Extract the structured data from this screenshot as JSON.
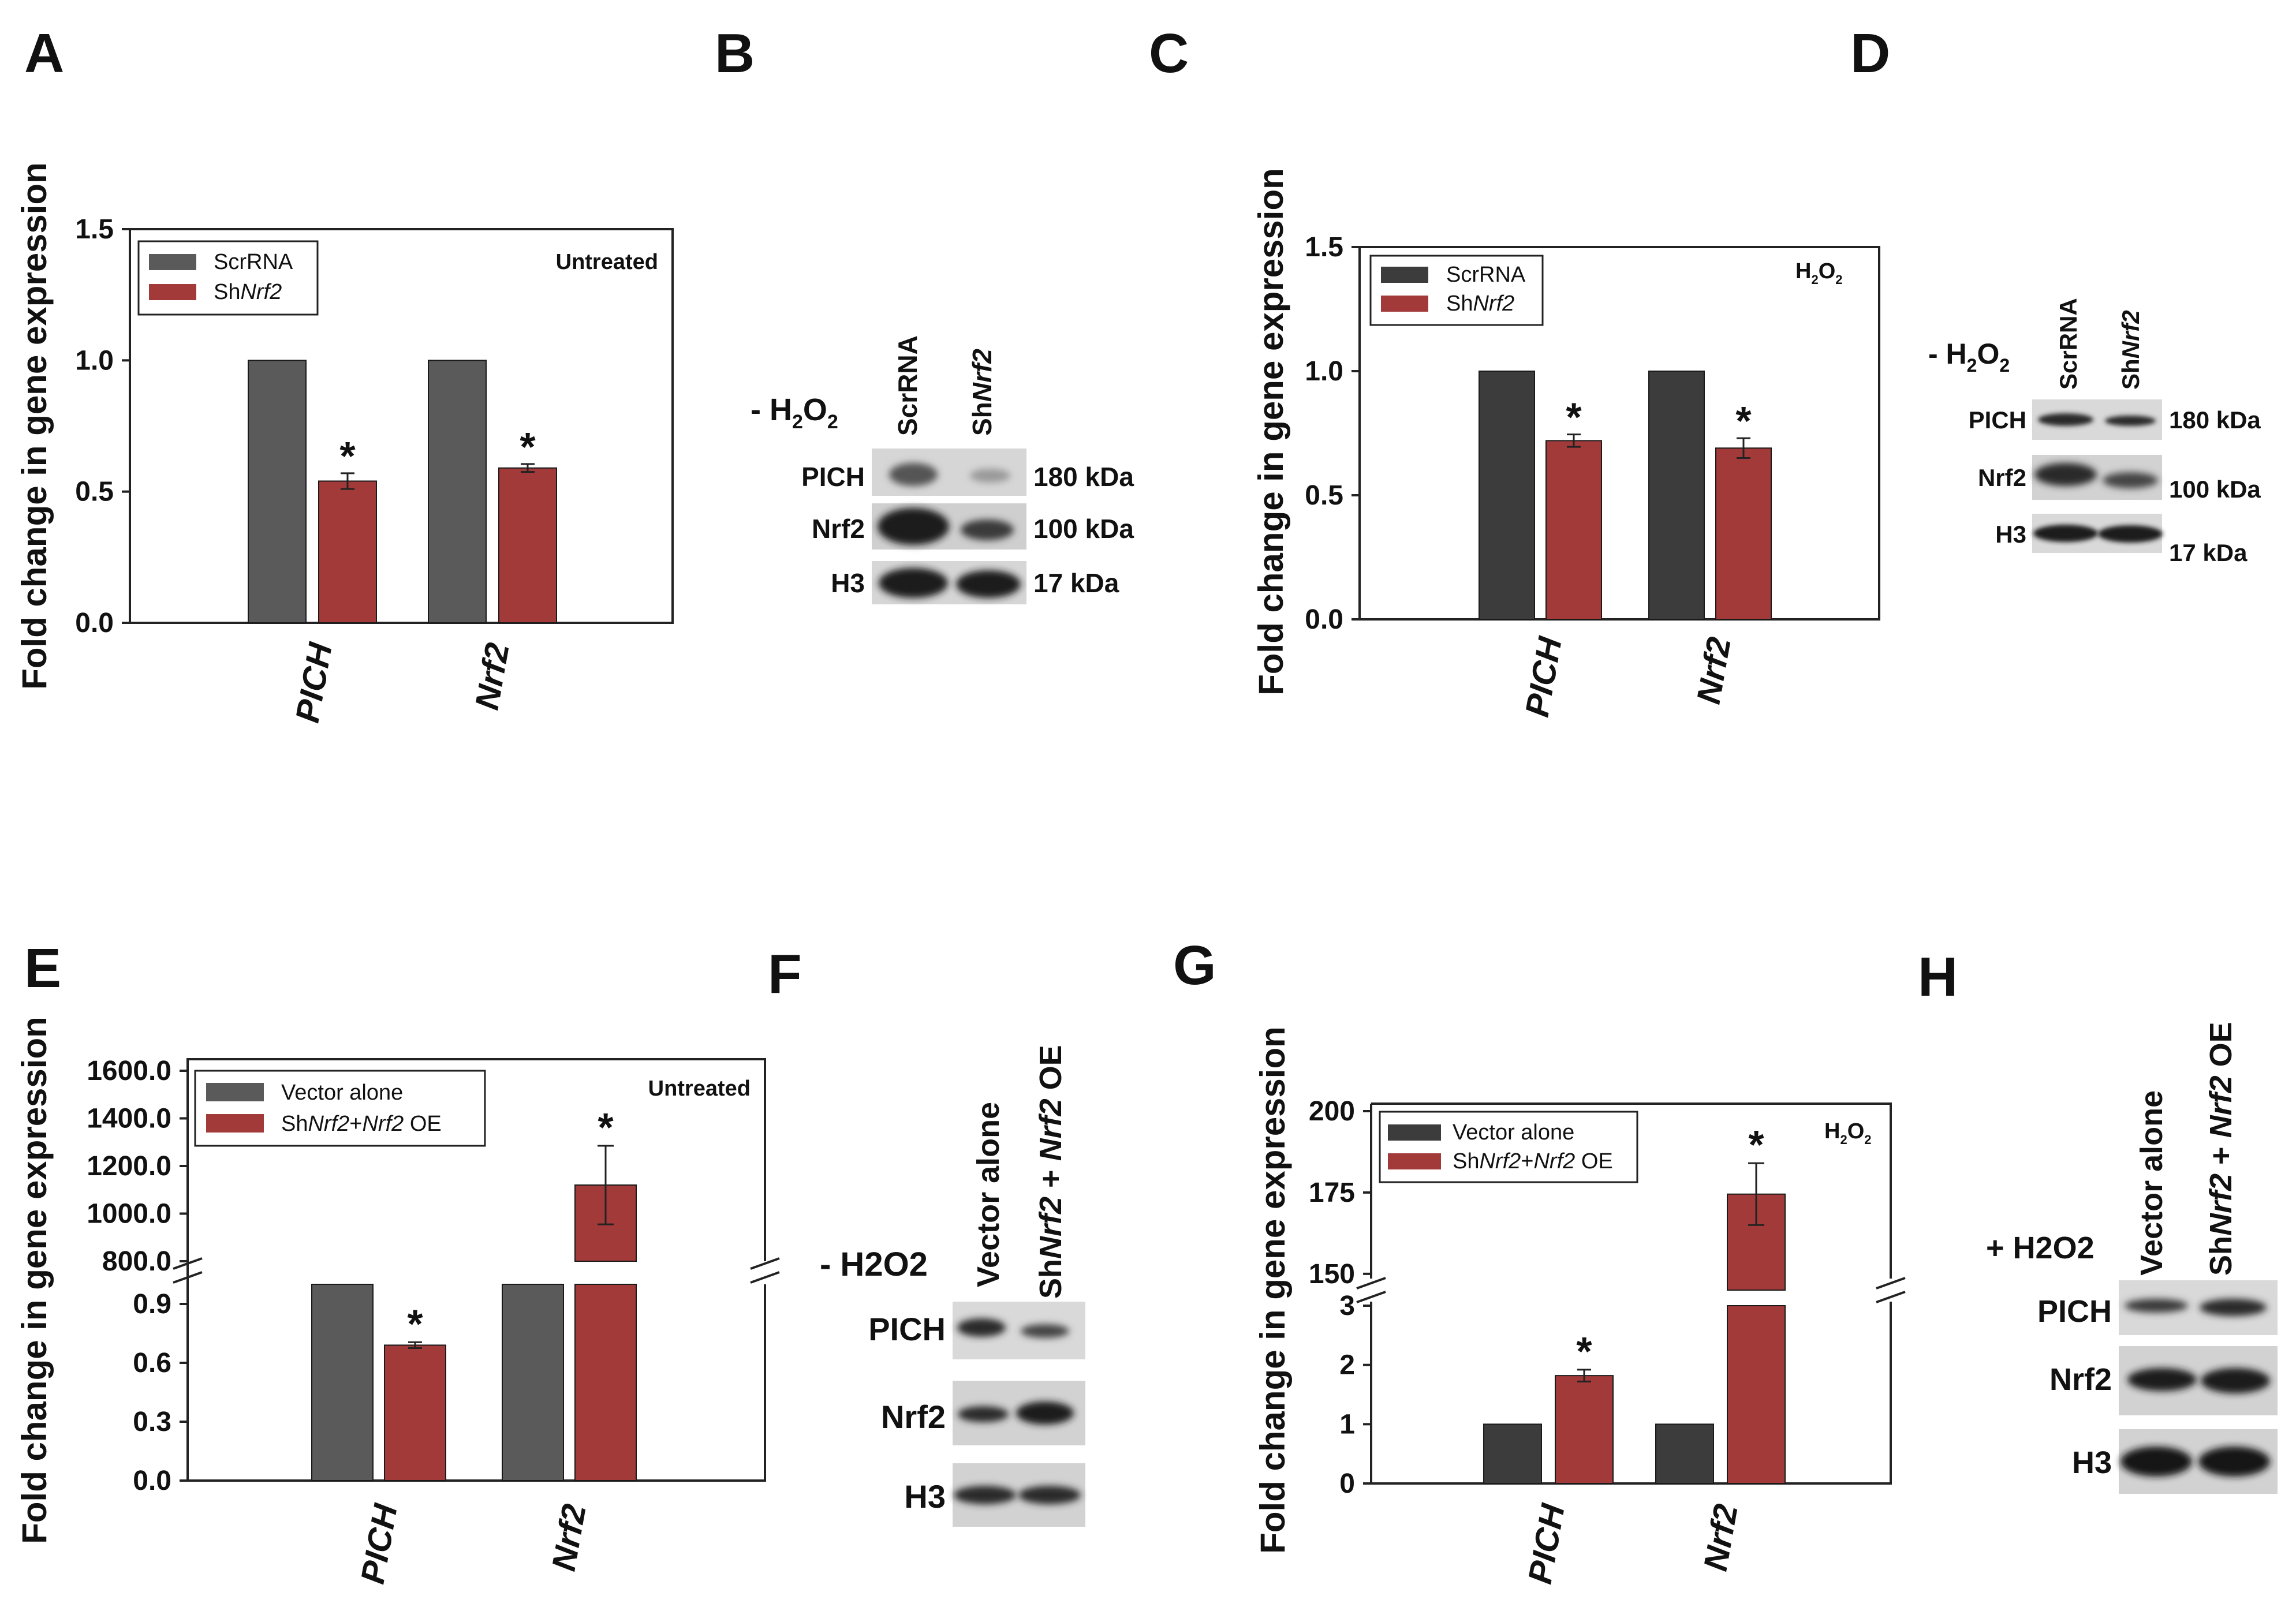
{
  "colors": {
    "grey": "#5a5a5a",
    "dark": "#3c3c3c",
    "red": "#a33a3a",
    "blot_bg": "#d9d9d9",
    "band": "#2a2a2a"
  },
  "panels": {
    "a": {
      "letter": "A",
      "condition": "Untreated"
    },
    "b": {
      "letter": "B"
    },
    "c": {
      "letter": "C",
      "condition_main": "H",
      "condition_sub1": "2",
      "condition_mid": "O",
      "condition_sub2": "2"
    },
    "d": {
      "letter": "D"
    },
    "e": {
      "letter": "E",
      "condition": "Untreated"
    },
    "f": {
      "letter": "F"
    },
    "g": {
      "letter": "G",
      "condition_main": "H",
      "condition_sub1": "2",
      "condition_mid": "O",
      "condition_sub2": "2"
    },
    "h": {
      "letter": "H"
    }
  },
  "chart_data": [
    {
      "id": "A",
      "type": "bar",
      "title": "Untreated",
      "ylabel": "Fold change in gene expression",
      "categories": [
        "PICH",
        "Nrf2"
      ],
      "series": [
        {
          "name": "ScrRNA",
          "values": [
            1.0,
            1.0
          ],
          "errors": [
            0,
            0
          ]
        },
        {
          "name": "ShNrf2",
          "values": [
            0.54,
            0.59
          ],
          "errors": [
            0.03,
            0.015
          ]
        }
      ],
      "significance": [
        "*",
        "*"
      ],
      "yticks": [
        "0.0",
        "0.5",
        "1.0",
        "1.5"
      ],
      "ylim": [
        0,
        1.5
      ]
    },
    {
      "id": "C",
      "type": "bar",
      "title": "H2O2",
      "ylabel": "Fold change in gene expression",
      "categories": [
        "PICH",
        "Nrf2"
      ],
      "series": [
        {
          "name": "ScrRNA",
          "values": [
            1.0,
            1.0
          ],
          "errors": [
            0,
            0
          ]
        },
        {
          "name": "ShNrf2",
          "values": [
            0.72,
            0.69
          ],
          "errors": [
            0.025,
            0.04
          ]
        }
      ],
      "significance": [
        "*",
        "*"
      ],
      "yticks": [
        "0.0",
        "0.5",
        "1.0",
        "1.5"
      ],
      "ylim": [
        0,
        1.5
      ]
    },
    {
      "id": "E",
      "type": "bar",
      "title": "Untreated",
      "ylabel": "Fold change in gene expression",
      "categories": [
        "PICH",
        "Nrf2"
      ],
      "series": [
        {
          "name": "Vector alone",
          "values": [
            1.0,
            1.0
          ],
          "errors": [
            0,
            0
          ]
        },
        {
          "name": "ShNrf2+Nrf2 OE",
          "values": [
            0.69,
            1120
          ],
          "errors": [
            0.015,
            165
          ]
        }
      ],
      "significance": [
        "*",
        "*"
      ],
      "broken_axis": {
        "lower": [
          0,
          1.0
        ],
        "upper": [
          800,
          1600
        ]
      },
      "yticks_lower": [
        "0.0",
        "0.3",
        "0.6",
        "0.9"
      ],
      "yticks_upper": [
        "800.0",
        "1000.0",
        "1200.0",
        "1400.0",
        "1600.0"
      ]
    },
    {
      "id": "G",
      "type": "bar",
      "title": "H2O2",
      "ylabel": "Fold change in gene expression",
      "categories": [
        "PICH",
        "Nrf2"
      ],
      "series": [
        {
          "name": "Vector alone",
          "values": [
            1.0,
            1.0
          ],
          "errors": [
            0,
            0
          ]
        },
        {
          "name": "ShNrf2+Nrf2 OE",
          "values": [
            1.82,
            174.5
          ],
          "errors": [
            0.1,
            9.5
          ]
        }
      ],
      "significance": [
        "*",
        "*"
      ],
      "broken_axis": {
        "lower": [
          0,
          3
        ],
        "upper": [
          145,
          200
        ]
      },
      "yticks_lower": [
        "0",
        "1",
        "2",
        "3"
      ],
      "yticks_upper": [
        "150",
        "175",
        "200"
      ]
    }
  ],
  "blots": {
    "b": {
      "treatment": "- H",
      "treatment_sub": "2",
      "treatment_mid": "O",
      "treatment_sub2": "2",
      "lane1": "ScrRNA",
      "lane2_prefix": "Sh",
      "lane2_gene": "Nrf2",
      "rows": [
        {
          "label": "PICH",
          "kda": "180 kDa"
        },
        {
          "label": "Nrf2",
          "kda": "100 kDa"
        },
        {
          "label": "H3",
          "kda": "17 kDa"
        }
      ]
    },
    "d": {
      "treatment": "- H",
      "treatment_sub": "2",
      "treatment_mid": "O",
      "treatment_sub2": "2",
      "lane1": "ScrRNA",
      "lane2_prefix": "Sh",
      "lane2_gene": "Nrf2",
      "rows": [
        {
          "label": "PICH",
          "kda": "180 kDa"
        },
        {
          "label": "Nrf2",
          "kda": "100 kDa"
        },
        {
          "label": "H3",
          "kda": "17 kDa"
        }
      ]
    },
    "f": {
      "treatment": "- H2O2",
      "lane1": "Vector alone",
      "lane2_prefix": "Sh",
      "lane2_gene": "Nrf2",
      "lane2_mid": " + ",
      "lane2_gene2": "Nrf2",
      "lane2_suffix": " OE",
      "rows": [
        {
          "label": "PICH"
        },
        {
          "label": "Nrf2"
        },
        {
          "label": "H3"
        }
      ]
    },
    "h": {
      "treatment": "+ H2O2",
      "lane1": "Vector alone",
      "lane2_prefix": "Sh",
      "lane2_gene": "Nrf2",
      "lane2_mid": " + ",
      "lane2_gene2": "Nrf2",
      "lane2_suffix": " OE",
      "rows": [
        {
          "label": "PICH"
        },
        {
          "label": "Nrf2"
        },
        {
          "label": "H3"
        }
      ]
    }
  }
}
